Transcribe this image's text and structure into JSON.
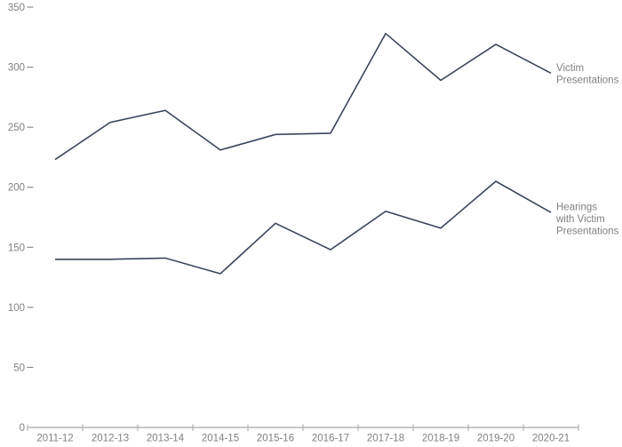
{
  "chart_data": {
    "type": "line",
    "title": "",
    "xlabel": "",
    "ylabel": "",
    "categories": [
      "2011-12",
      "2012-13",
      "2013-14",
      "2014-15",
      "2015-16",
      "2016-17",
      "2017-18",
      "2018-19",
      "2019-20",
      "2020-21"
    ],
    "series": [
      {
        "name": "Victim Presentations",
        "label_lines": [
          "Victim",
          "Presentations"
        ],
        "values": [
          223,
          254,
          264,
          231,
          244,
          245,
          328,
          289,
          319,
          295
        ]
      },
      {
        "name": "Hearings with Victim Presentations",
        "label_lines": [
          "Hearings",
          "with Victim",
          "Presentations"
        ],
        "values": [
          140,
          140,
          141,
          128,
          170,
          148,
          180,
          166,
          205,
          179
        ]
      }
    ],
    "ylim": [
      0,
      350
    ],
    "ytick_step": 50,
    "ytick_labels": [
      "0",
      "50",
      "100",
      "150",
      "200",
      "250",
      "300",
      "350"
    ],
    "grid": false,
    "legend_position": "inline-right-of-line-end"
  },
  "colors": {
    "series_line": "#3A465C",
    "axis_line": "#A6A6A6",
    "tick_mark": "#A6A6A6",
    "y_dash": "#8C8C8C",
    "label_text": "#808080",
    "background": "#FFFFFF"
  }
}
